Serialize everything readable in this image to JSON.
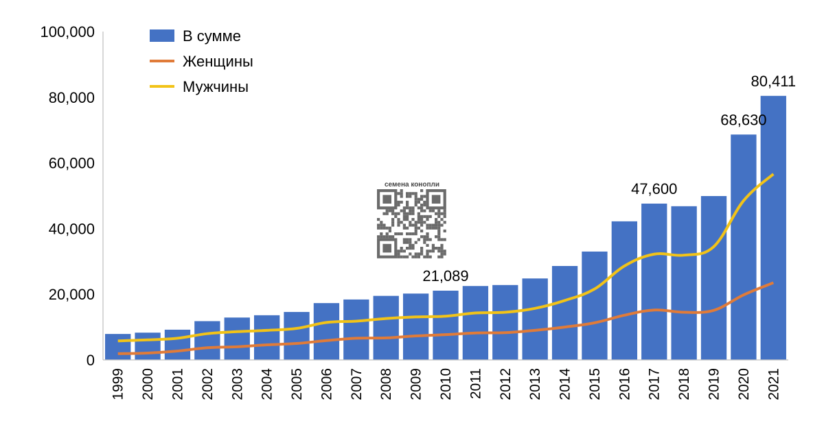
{
  "chart_data": {
    "type": "bar",
    "categories": [
      "1999",
      "2000",
      "2001",
      "2002",
      "2003",
      "2004",
      "2005",
      "2006",
      "2007",
      "2008",
      "2009",
      "2010",
      "2011",
      "2012",
      "2013",
      "2014",
      "2015",
      "2016",
      "2017",
      "2018",
      "2019",
      "2020",
      "2021"
    ],
    "series": [
      {
        "name": "В сумме",
        "kind": "bar",
        "color": "#4472C4",
        "values": [
          7900,
          8300,
          9200,
          11800,
          12900,
          13600,
          14600,
          17300,
          18400,
          19500,
          20200,
          21089,
          22500,
          22800,
          24800,
          28600,
          33000,
          42200,
          47600,
          46800,
          49900,
          68630,
          80411
        ]
      },
      {
        "name": "Женщины",
        "kind": "line",
        "color": "#E07B39",
        "values": [
          1900,
          2100,
          2700,
          3700,
          4000,
          4600,
          5000,
          5900,
          6600,
          6700,
          7300,
          7700,
          8200,
          8300,
          9000,
          10000,
          11300,
          13600,
          15200,
          14500,
          15100,
          19800,
          23500
        ]
      },
      {
        "name": "Мужчины",
        "kind": "line",
        "color": "#F2C318",
        "values": [
          5800,
          6100,
          6600,
          8000,
          8600,
          9000,
          9600,
          11400,
          11800,
          12600,
          13100,
          13300,
          14300,
          14500,
          15700,
          18100,
          21600,
          28600,
          32200,
          31900,
          34500,
          48500,
          56600
        ]
      }
    ],
    "data_labels": [
      {
        "category": "2010",
        "text": "21,089"
      },
      {
        "category": "2017",
        "text": "47,600"
      },
      {
        "category": "2020",
        "text": "68,630"
      },
      {
        "category": "2021",
        "text": "80,411"
      }
    ],
    "y_ticks": [
      "0",
      "20,000",
      "40,000",
      "60,000",
      "80,000",
      "100,000"
    ],
    "ylim": [
      0,
      100000
    ],
    "legend_position": "top-left",
    "grid": false,
    "title": "",
    "xlabel": "",
    "ylabel": ""
  },
  "watermark": {
    "caption": "семена конопли"
  }
}
